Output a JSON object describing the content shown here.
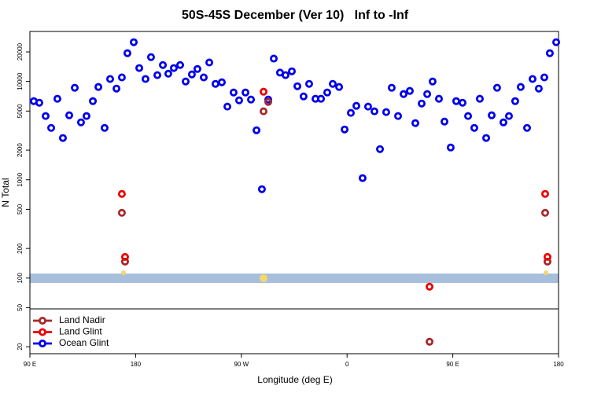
{
  "chart_data": {
    "type": "scatter",
    "title": "50S-45S December (Ver 10)   Inf to -Inf",
    "x_label": "Longitude (deg E)",
    "y_label": "N Total",
    "xlim": [
      90,
      540
    ],
    "xticks": [
      {
        "value": 90,
        "label": "90 E"
      },
      {
        "value": 180,
        "label": "180"
      },
      {
        "value": 270,
        "label": "90 W"
      },
      {
        "value": 360,
        "label": "0"
      },
      {
        "value": 450,
        "label": "90 E"
      },
      {
        "value": 540,
        "label": "180"
      }
    ],
    "ylim": [
      17,
      32300
    ],
    "yticks": [
      20000,
      10000,
      5000,
      2000,
      1000,
      500,
      200,
      100,
      50,
      20
    ],
    "log_y": true,
    "grid": false,
    "legend": "lower left",
    "series": [
      {
        "name": "Ocean Glint",
        "color": "#0000ee",
        "x": [
          93.3,
          98.0,
          103.4,
          108.1,
          113.4,
          118.1,
          123.5,
          128.2,
          133.5,
          138.2,
          143.6,
          148.3,
          153.6,
          158.3,
          163.7,
          168.3,
          173.0,
          178.4,
          183.1,
          188.4,
          193.1,
          198.5,
          203.2,
          207.8,
          212.5,
          217.9,
          222.6,
          227.9,
          232.6,
          238.0,
          242.7,
          248.0,
          253.4,
          258.1,
          263.4,
          268.1,
          273.5,
          278.2,
          282.9,
          287.5,
          292.9,
          297.6,
          302.9,
          307.6,
          313.0,
          317.7,
          323.0,
          327.7,
          333.1,
          337.8,
          343.1,
          347.8,
          353.2,
          357.9,
          363.2,
          367.9,
          373.2,
          377.9,
          383.3,
          388.0,
          393.3,
          398.0,
          403.4,
          408.1,
          413.4,
          418.1,
          423.5,
          428.2,
          432.8,
          438.2,
          442.9,
          448.2,
          452.9,
          458.3,
          463.0,
          468.3,
          473.0,
          478.4,
          483.1,
          487.7,
          493.1,
          497.8,
          503.1,
          507.8,
          513.2,
          517.9,
          523.2,
          527.9,
          532.6,
          538.0
        ],
        "values": [
          6310,
          6080,
          4450,
          3370,
          6670,
          2660,
          4530,
          8630,
          3840,
          4450,
          6310,
          8790,
          3370,
          10600,
          8470,
          11000,
          19400,
          25100,
          13700,
          10600,
          17700,
          11600,
          14700,
          12000,
          13700,
          14700,
          10000,
          11800,
          13400,
          11000,
          15600,
          9460,
          9820,
          5550,
          7730,
          6430,
          7730,
          6550,
          3190,
          802,
          6550,
          17100,
          12300,
          11600,
          12700,
          8950,
          7050,
          9460,
          6670,
          6670,
          7730,
          9460,
          8790,
          3250,
          4790,
          5650,
          1040,
          5550,
          4970,
          2050,
          4880,
          8630,
          4450,
          7450,
          8020,
          3770,
          5970,
          7450,
          10000,
          6670,
          3910,
          2130,
          6310,
          6080,
          4450,
          3370,
          6670,
          2660,
          4530,
          8630,
          3840,
          4450,
          6310,
          8790,
          3370,
          10600,
          8470,
          11000,
          19400,
          25100
        ]
      },
      {
        "name": "Land Nadir",
        "color": "#a52a2a",
        "x": [
          168.3,
          171.0,
          288.9,
          292.9,
          430.2,
          528.6,
          530.6
        ],
        "values": [
          461,
          147,
          4970,
          6190,
          22.5,
          461,
          147
        ]
      },
      {
        "name": "Land Glint",
        "color": "#ee0000",
        "x": [
          168.3,
          171.0,
          288.9,
          430.2,
          528.6,
          530.6
        ],
        "values": [
          718,
          164,
          7870,
          81.7,
          718,
          164
        ]
      }
    ]
  }
}
